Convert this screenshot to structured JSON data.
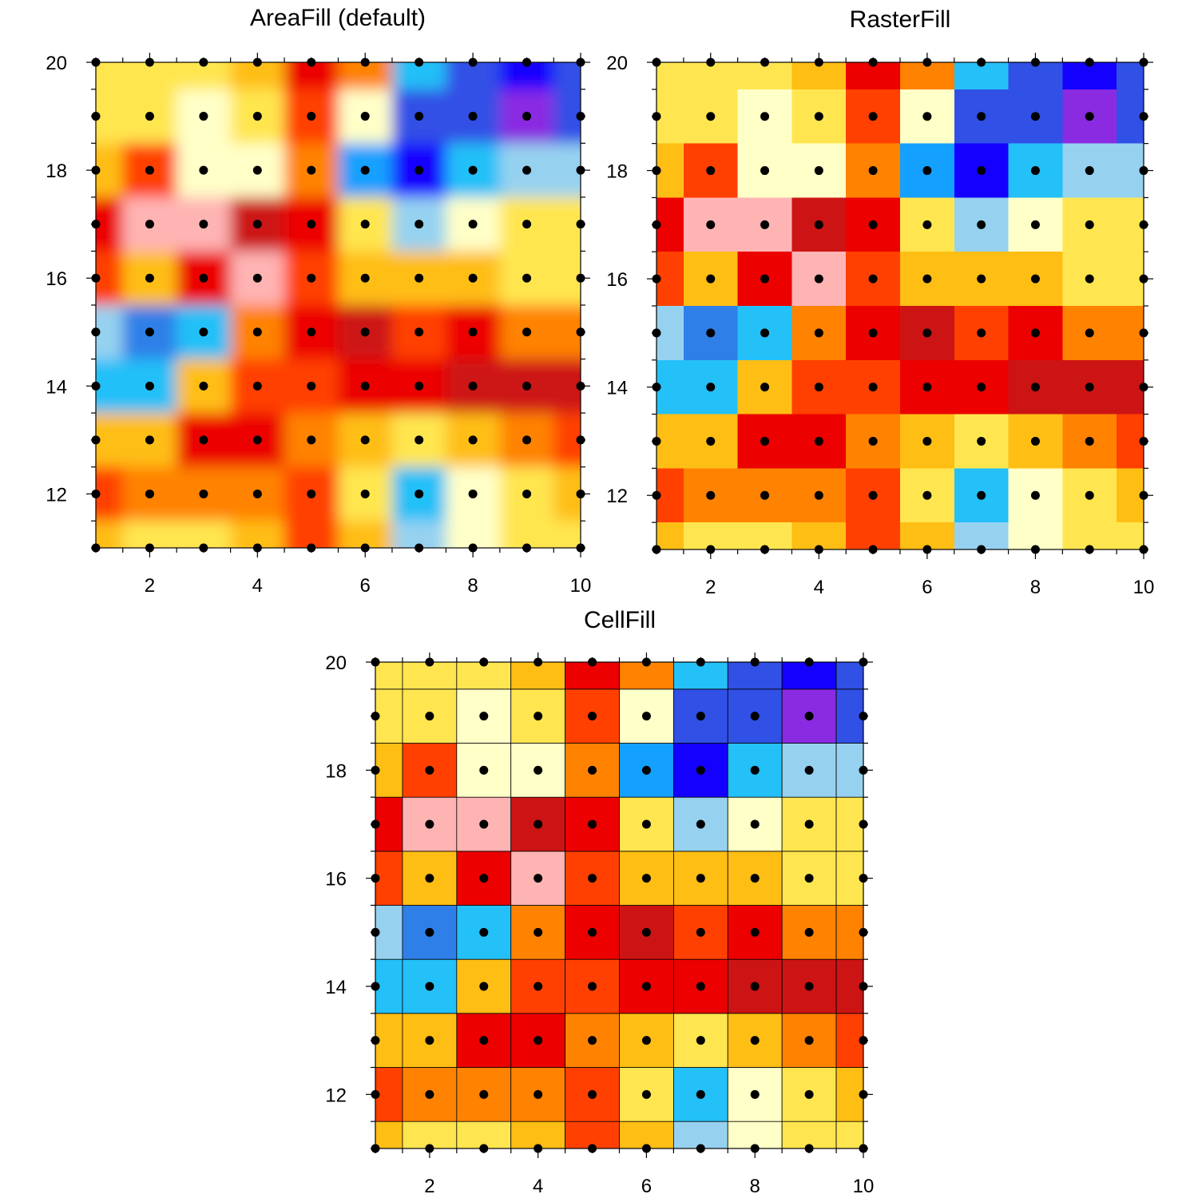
{
  "figure": {
    "palette": {
      "c0": "#8a2be2",
      "c1": "#1400ff",
      "c2": "#3050e6",
      "c3": "#2f7fe8",
      "c4": "#14a0ff",
      "c5": "#24c0f8",
      "c6": "#96d2f0",
      "c7": "#ffffc8",
      "c8": "#ffe650",
      "c9": "#ffbe14",
      "c10": "#ff8200",
      "c11": "#ff4000",
      "c12": "#ec0000",
      "c13": "#cd1414",
      "c14": "#ffb4b4"
    },
    "panels": [
      {
        "id": "areafill",
        "chart_data": {
          "type": "heatmap",
          "title": "AreaFill (default)",
          "fill_mode": "contour",
          "xlim": [
            1,
            10
          ],
          "ylim": [
            11,
            20
          ],
          "xticks": [
            2,
            4,
            6,
            8,
            10
          ],
          "yticks": [
            12,
            14,
            16,
            18,
            20
          ],
          "x": [
            1,
            2,
            3,
            4,
            5,
            6,
            7,
            8,
            9,
            10
          ],
          "y": [
            11,
            12,
            13,
            14,
            15,
            16,
            17,
            18,
            19,
            20
          ],
          "cells": [
            [
              "c9",
              "c8",
              "c8",
              "c9",
              "c11",
              "c9",
              "c6",
              "c7",
              "c8",
              "c8"
            ],
            [
              "c11",
              "c10",
              "c10",
              "c10",
              "c11",
              "c8",
              "c5",
              "c7",
              "c8",
              "c9"
            ],
            [
              "c9",
              "c9",
              "c12",
              "c12",
              "c10",
              "c9",
              "c8",
              "c9",
              "c10",
              "c11"
            ],
            [
              "c5",
              "c5",
              "c9",
              "c11",
              "c11",
              "c12",
              "c12",
              "c13",
              "c13",
              "c13"
            ],
            [
              "c6",
              "c3",
              "c5",
              "c10",
              "c12",
              "c13",
              "c11",
              "c12",
              "c10",
              "c10"
            ],
            [
              "c11",
              "c9",
              "c12",
              "c14",
              "c11",
              "c9",
              "c9",
              "c9",
              "c8",
              "c8"
            ],
            [
              "c12",
              "c14",
              "c14",
              "c13",
              "c12",
              "c8",
              "c6",
              "c7",
              "c8",
              "c8"
            ],
            [
              "c9",
              "c11",
              "c7",
              "c7",
              "c10",
              "c4",
              "c1",
              "c5",
              "c6",
              "c6"
            ],
            [
              "c8",
              "c8",
              "c7",
              "c8",
              "c11",
              "c7",
              "c2",
              "c2",
              "c0",
              "c2"
            ],
            [
              "c8",
              "c8",
              "c8",
              "c9",
              "c12",
              "c10",
              "c5",
              "c2",
              "c1",
              "c2"
            ]
          ]
        }
      },
      {
        "id": "rasterfill",
        "chart_data": {
          "type": "heatmap",
          "title": "RasterFill",
          "fill_mode": "raster",
          "xlim": [
            1,
            10
          ],
          "ylim": [
            11,
            20
          ],
          "xticks": [
            2,
            4,
            6,
            8,
            10
          ],
          "yticks": [
            12,
            14,
            16,
            18,
            20
          ],
          "x": [
            1,
            2,
            3,
            4,
            5,
            6,
            7,
            8,
            9,
            10
          ],
          "y": [
            11,
            12,
            13,
            14,
            15,
            16,
            17,
            18,
            19,
            20
          ],
          "cells": [
            [
              "c9",
              "c8",
              "c8",
              "c9",
              "c11",
              "c9",
              "c6",
              "c7",
              "c8",
              "c8"
            ],
            [
              "c11",
              "c10",
              "c10",
              "c10",
              "c11",
              "c8",
              "c5",
              "c7",
              "c8",
              "c9"
            ],
            [
              "c9",
              "c9",
              "c12",
              "c12",
              "c10",
              "c9",
              "c8",
              "c9",
              "c10",
              "c11"
            ],
            [
              "c5",
              "c5",
              "c9",
              "c11",
              "c11",
              "c12",
              "c12",
              "c13",
              "c13",
              "c13"
            ],
            [
              "c6",
              "c3",
              "c5",
              "c10",
              "c12",
              "c13",
              "c11",
              "c12",
              "c10",
              "c10"
            ],
            [
              "c11",
              "c9",
              "c12",
              "c14",
              "c11",
              "c9",
              "c9",
              "c9",
              "c8",
              "c8"
            ],
            [
              "c12",
              "c14",
              "c14",
              "c13",
              "c12",
              "c8",
              "c6",
              "c7",
              "c8",
              "c8"
            ],
            [
              "c9",
              "c11",
              "c7",
              "c7",
              "c10",
              "c4",
              "c1",
              "c5",
              "c6",
              "c6"
            ],
            [
              "c8",
              "c8",
              "c7",
              "c8",
              "c11",
              "c7",
              "c2",
              "c2",
              "c0",
              "c2"
            ],
            [
              "c8",
              "c8",
              "c8",
              "c9",
              "c12",
              "c10",
              "c5",
              "c2",
              "c1",
              "c2"
            ]
          ]
        }
      },
      {
        "id": "cellfill",
        "chart_data": {
          "type": "heatmap",
          "title": "CellFill",
          "fill_mode": "cell",
          "cell_edges": true,
          "xlim": [
            1,
            10
          ],
          "ylim": [
            11,
            20
          ],
          "xticks": [
            2,
            4,
            6,
            8,
            10
          ],
          "yticks": [
            12,
            14,
            16,
            18,
            20
          ],
          "x": [
            1,
            2,
            3,
            4,
            5,
            6,
            7,
            8,
            9,
            10
          ],
          "y": [
            11,
            12,
            13,
            14,
            15,
            16,
            17,
            18,
            19,
            20
          ],
          "cells": [
            [
              "c9",
              "c8",
              "c8",
              "c9",
              "c11",
              "c9",
              "c6",
              "c7",
              "c8",
              "c8"
            ],
            [
              "c11",
              "c10",
              "c10",
              "c10",
              "c11",
              "c8",
              "c5",
              "c7",
              "c8",
              "c9"
            ],
            [
              "c9",
              "c9",
              "c12",
              "c12",
              "c10",
              "c9",
              "c8",
              "c9",
              "c10",
              "c11"
            ],
            [
              "c5",
              "c5",
              "c9",
              "c11",
              "c11",
              "c12",
              "c12",
              "c13",
              "c13",
              "c13"
            ],
            [
              "c6",
              "c3",
              "c5",
              "c10",
              "c12",
              "c13",
              "c11",
              "c12",
              "c10",
              "c10"
            ],
            [
              "c11",
              "c9",
              "c12",
              "c14",
              "c11",
              "c9",
              "c9",
              "c9",
              "c8",
              "c8"
            ],
            [
              "c12",
              "c14",
              "c14",
              "c13",
              "c12",
              "c8",
              "c6",
              "c7",
              "c8",
              "c8"
            ],
            [
              "c9",
              "c11",
              "c7",
              "c7",
              "c10",
              "c4",
              "c1",
              "c5",
              "c6",
              "c6"
            ],
            [
              "c8",
              "c8",
              "c7",
              "c8",
              "c11",
              "c7",
              "c2",
              "c2",
              "c0",
              "c2"
            ],
            [
              "c8",
              "c8",
              "c8",
              "c9",
              "c12",
              "c10",
              "c5",
              "c2",
              "c1",
              "c2"
            ]
          ]
        }
      }
    ]
  }
}
